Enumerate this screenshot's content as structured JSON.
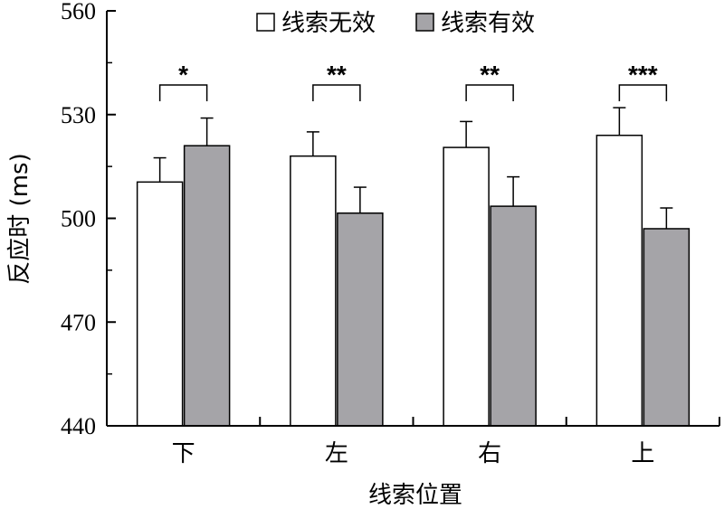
{
  "chart_data": {
    "type": "bar",
    "categories": [
      "下",
      "左",
      "右",
      "上"
    ],
    "series": [
      {
        "name": "线索无效",
        "values": [
          510.5,
          518,
          520.5,
          524
        ],
        "errors": [
          7,
          7,
          7.5,
          8
        ],
        "color": "#ffffff"
      },
      {
        "name": "线索有效",
        "values": [
          521,
          501.5,
          503.5,
          497
        ],
        "errors": [
          8,
          7.5,
          8.5,
          6
        ],
        "color": "#a5a4a8"
      }
    ],
    "significance": [
      "*",
      "**",
      "**",
      "***"
    ],
    "xlabel": "线索位置",
    "ylabel": "反应时 (ms)",
    "ylim": [
      440,
      560
    ],
    "yticks": [
      "440",
      "470",
      "500",
      "530",
      "560"
    ],
    "legend_position": "top",
    "grid": false
  }
}
